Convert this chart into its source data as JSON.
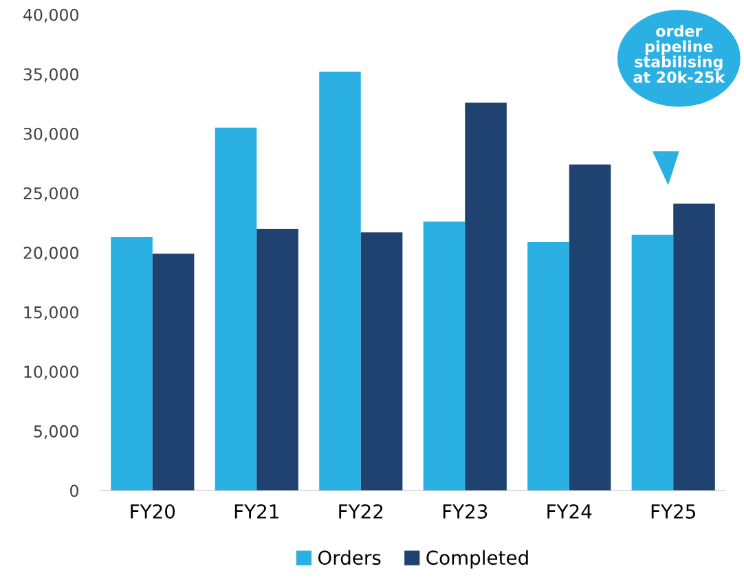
{
  "chart_data": {
    "type": "bar",
    "categories": [
      "FY20",
      "FY21",
      "FY22",
      "FY23",
      "FY24",
      "FY25"
    ],
    "series": [
      {
        "name": "Orders",
        "color": "#2bb0e3",
        "values": [
          21300,
          30500,
          35200,
          22600,
          20900,
          21500
        ]
      },
      {
        "name": "Completed",
        "color": "#1f4270",
        "values": [
          19900,
          22000,
          21700,
          32600,
          27400,
          24100
        ]
      }
    ],
    "ylim": [
      0,
      40000
    ],
    "yticks": [
      0,
      {
        "value": 5000,
        "label": "5,000"
      },
      {
        "value": 10000,
        "label": "10,000"
      },
      {
        "value": 15000,
        "label": "15,000"
      },
      {
        "value": 20000,
        "label": "20,000"
      },
      {
        "value": 25000,
        "label": "25,000"
      },
      {
        "value": 30000,
        "label": "30,000"
      },
      {
        "value": 35000,
        "label": "35,000"
      },
      {
        "value": 40000,
        "label": "40,000"
      }
    ],
    "annotations": [
      "order\npipeline\nstabilising\nat 20k-25k"
    ],
    "grid": false,
    "legend": "bottom"
  }
}
